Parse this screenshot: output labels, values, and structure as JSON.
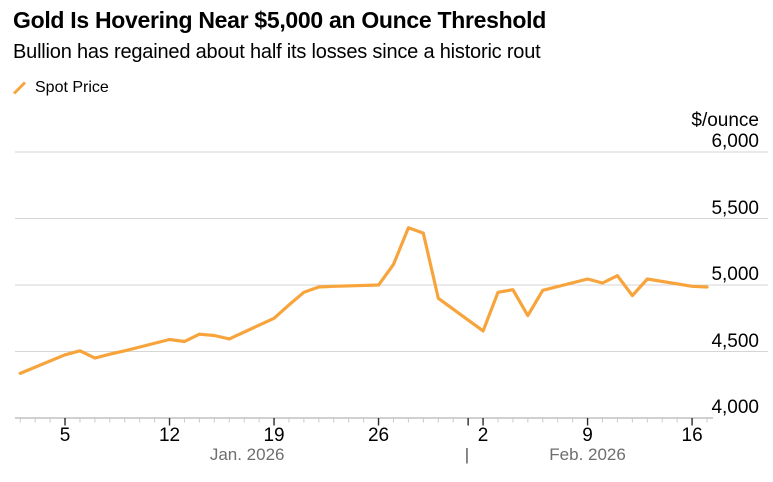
{
  "colors": {
    "line": "#F8A43C",
    "grid": "#D6D6D6",
    "axis_line": "#B5B5B5",
    "tick_major": "#2B2B2B",
    "tick_minor": "#C8C8C8",
    "month_label": "#6E6E6E",
    "text": "#000000",
    "background": "#FFFFFF"
  },
  "chart_data": {
    "type": "line",
    "title": "Gold Is Hovering Near $5,000 an Ounce Threshold",
    "subtitle": "Bullion has regained about half its losses since a historic rout",
    "unit_label": "$/ounce",
    "xlabel": "",
    "ylabel": "$/ounce",
    "ylim": [
      4000,
      6000
    ],
    "grid": "horizontal-only",
    "legend_position": "top-left",
    "y_ticks": [
      {
        "value": 6000,
        "label": "6,000"
      },
      {
        "value": 5500,
        "label": "5,500"
      },
      {
        "value": 5000,
        "label": "5,000"
      },
      {
        "value": 4500,
        "label": "4,500"
      },
      {
        "value": 4000,
        "label": "4,000"
      }
    ],
    "grid_values": [
      6000,
      5500,
      5000,
      4500
    ],
    "x_ticks": [
      {
        "label": "5",
        "day": 4
      },
      {
        "label": "12",
        "day": 11
      },
      {
        "label": "19",
        "day": 18
      },
      {
        "label": "26",
        "day": 25
      },
      {
        "label": "2",
        "day": 32
      },
      {
        "label": "9",
        "day": 39
      },
      {
        "label": "16",
        "day": 46
      }
    ],
    "month_boundary_day": 31,
    "month_separator": "|",
    "month_labels": [
      {
        "label": "Jan. 2026",
        "center_day": 16.2
      },
      {
        "label": "Feb. 2026",
        "center_day": 39.0
      }
    ],
    "series": [
      {
        "name": "Spot Price",
        "color": "#F8A43C",
        "points": [
          {
            "date": "Jan 2",
            "day": 1,
            "value": 4335
          },
          {
            "date": "Jan 5",
            "day": 4,
            "value": 4475
          },
          {
            "date": "Jan 6",
            "day": 5,
            "value": 4505
          },
          {
            "date": "Jan 7",
            "day": 6,
            "value": 4450
          },
          {
            "date": "Jan 8",
            "day": 7,
            "value": 4480
          },
          {
            "date": "Jan 9",
            "day": 8,
            "value": 4505
          },
          {
            "date": "Jan 12",
            "day": 11,
            "value": 4590
          },
          {
            "date": "Jan 13",
            "day": 12,
            "value": 4575
          },
          {
            "date": "Jan 14",
            "day": 13,
            "value": 4630
          },
          {
            "date": "Jan 15",
            "day": 14,
            "value": 4620
          },
          {
            "date": "Jan 16",
            "day": 15,
            "value": 4595
          },
          {
            "date": "Jan 19",
            "day": 18,
            "value": 4750
          },
          {
            "date": "Jan 20",
            "day": 19,
            "value": 4850
          },
          {
            "date": "Jan 21",
            "day": 20,
            "value": 4945
          },
          {
            "date": "Jan 22",
            "day": 21,
            "value": 4985
          },
          {
            "date": "Jan 23",
            "day": 22,
            "value": 4990
          },
          {
            "date": "Jan 26",
            "day": 25,
            "value": 5000
          },
          {
            "date": "Jan 27",
            "day": 26,
            "value": 5155
          },
          {
            "date": "Jan 28",
            "day": 27,
            "value": 5430
          },
          {
            "date": "Jan 29",
            "day": 28,
            "value": 5390
          },
          {
            "date": "Jan 30",
            "day": 29,
            "value": 4900
          },
          {
            "date": "Feb 2",
            "day": 32,
            "value": 4655
          },
          {
            "date": "Feb 3",
            "day": 33,
            "value": 4945
          },
          {
            "date": "Feb 4",
            "day": 34,
            "value": 4965
          },
          {
            "date": "Feb 5",
            "day": 35,
            "value": 4770
          },
          {
            "date": "Feb 6",
            "day": 36,
            "value": 4960
          },
          {
            "date": "Feb 9",
            "day": 39,
            "value": 5045
          },
          {
            "date": "Feb 10",
            "day": 40,
            "value": 5015
          },
          {
            "date": "Feb 11",
            "day": 41,
            "value": 5070
          },
          {
            "date": "Feb 12",
            "day": 42,
            "value": 4920
          },
          {
            "date": "Feb 13",
            "day": 43,
            "value": 5045
          },
          {
            "date": "Feb 16",
            "day": 46,
            "value": 4990
          },
          {
            "date": "Feb 17",
            "day": 47,
            "value": 4985
          }
        ]
      }
    ]
  }
}
